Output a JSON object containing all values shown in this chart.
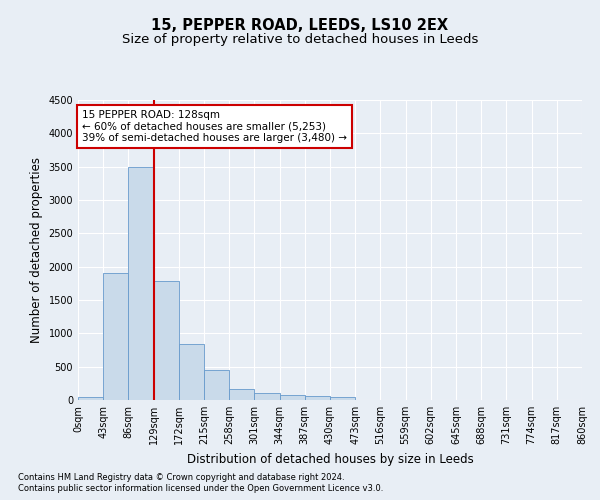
{
  "title": "15, PEPPER ROAD, LEEDS, LS10 2EX",
  "subtitle": "Size of property relative to detached houses in Leeds",
  "xlabel": "Distribution of detached houses by size in Leeds",
  "ylabel": "Number of detached properties",
  "bin_labels": [
    "0sqm",
    "43sqm",
    "86sqm",
    "129sqm",
    "172sqm",
    "215sqm",
    "258sqm",
    "301sqm",
    "344sqm",
    "387sqm",
    "430sqm",
    "473sqm",
    "516sqm",
    "559sqm",
    "602sqm",
    "645sqm",
    "688sqm",
    "731sqm",
    "774sqm",
    "817sqm",
    "860sqm"
  ],
  "bar_values": [
    50,
    1900,
    3500,
    1780,
    840,
    450,
    160,
    100,
    70,
    55,
    40,
    0,
    0,
    0,
    0,
    0,
    0,
    0,
    0,
    0
  ],
  "bar_color": "#c9daea",
  "bar_edge_color": "#6699cc",
  "vline_color": "#cc0000",
  "annotation_line1": "15 PEPPER ROAD: 128sqm",
  "annotation_line2": "← 60% of detached houses are smaller (5,253)",
  "annotation_line3": "39% of semi-detached houses are larger (3,480) →",
  "annotation_box_color": "#ffffff",
  "annotation_box_edge": "#cc0000",
  "ylim": [
    0,
    4500
  ],
  "yticks": [
    0,
    500,
    1000,
    1500,
    2000,
    2500,
    3000,
    3500,
    4000,
    4500
  ],
  "footer1": "Contains HM Land Registry data © Crown copyright and database right 2024.",
  "footer2": "Contains public sector information licensed under the Open Government Licence v3.0.",
  "bg_color": "#e8eef5",
  "plot_bg_color": "#e8eef5",
  "grid_color": "#ffffff",
  "title_fontsize": 10.5,
  "subtitle_fontsize": 9.5,
  "axis_label_fontsize": 8.5,
  "tick_fontsize": 7,
  "annotation_fontsize": 7.5,
  "footer_fontsize": 6
}
